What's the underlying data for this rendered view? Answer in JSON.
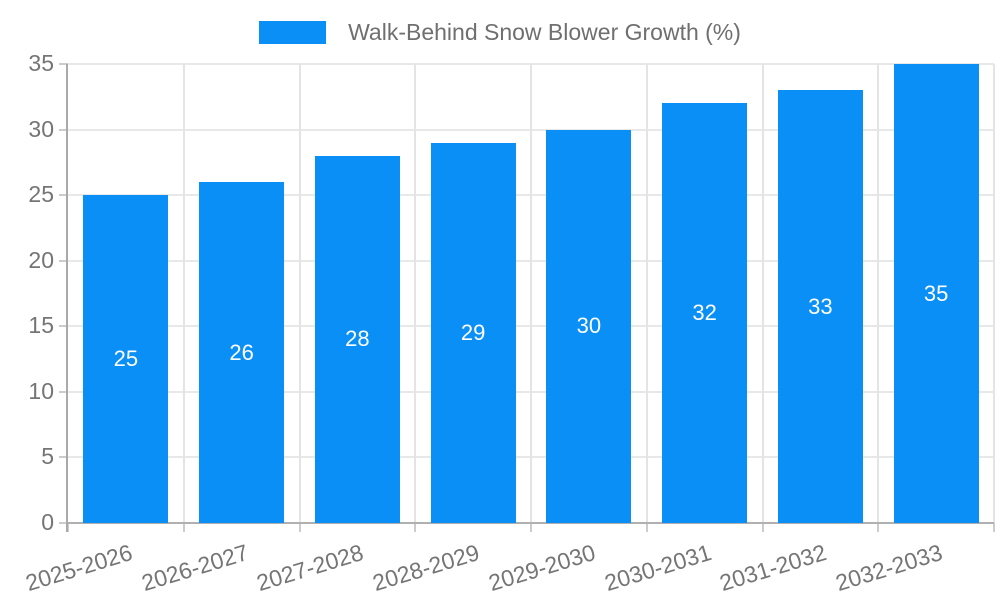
{
  "legend": {
    "label": "Walk-Behind Snow Blower Growth (%)"
  },
  "chart_data": {
    "type": "bar",
    "title": "Walk-Behind Snow Blower Growth (%)",
    "categories": [
      "2025-2026",
      "2026-2027",
      "2027-2028",
      "2028-2029",
      "2029-2030",
      "2030-2031",
      "2031-2032",
      "2032-2033"
    ],
    "values": [
      25,
      26,
      28,
      29,
      30,
      32,
      33,
      35
    ],
    "series": [
      {
        "name": "Walk-Behind Snow Blower Growth (%)",
        "values": [
          25,
          26,
          28,
          29,
          30,
          32,
          33,
          35
        ]
      }
    ],
    "xlabel": "",
    "ylabel": "",
    "ylim": [
      0,
      35
    ],
    "yticks": [
      0,
      5,
      10,
      15,
      20,
      25,
      30,
      35
    ],
    "grid": true,
    "legend_position": "top-center",
    "bar_color": "#0a8ff7",
    "bar_label_color": "#ffffff",
    "axis_text_color": "#757575",
    "gridline_color": "#e8e8e8",
    "axis_line_color": "#a9a9a9",
    "background_color": "#ffffff"
  }
}
